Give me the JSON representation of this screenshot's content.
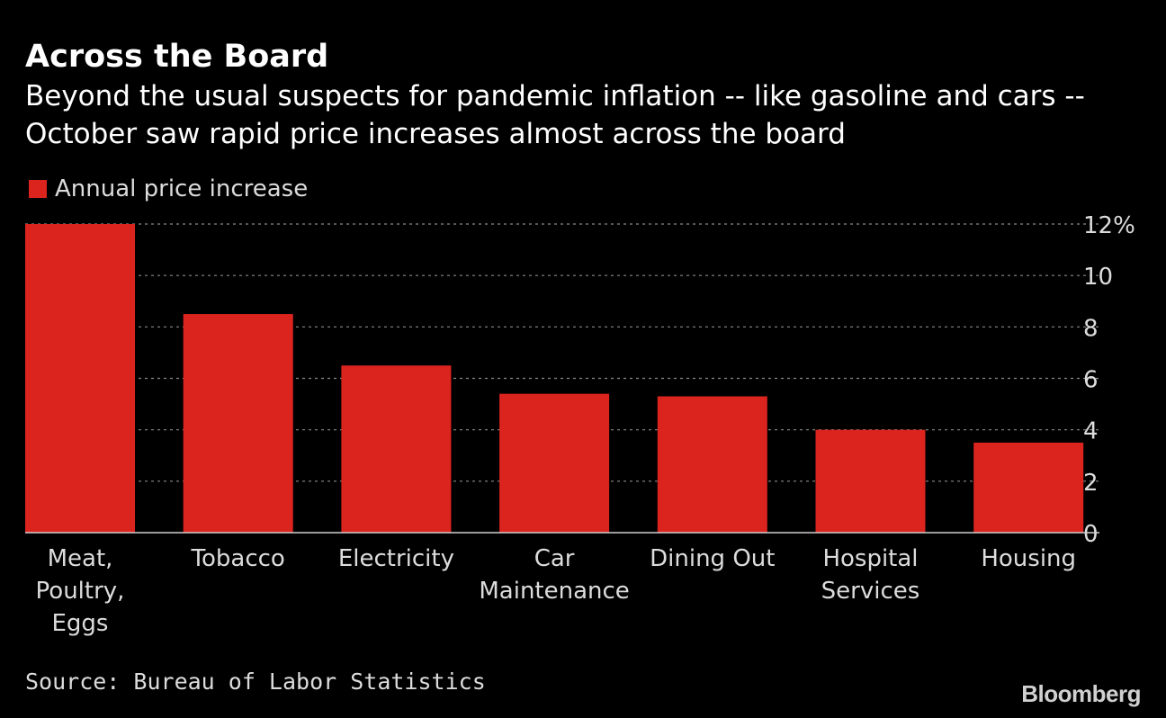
{
  "header": {
    "title": "Across the Board",
    "subtitle": "Beyond the usual suspects for pandemic inflation -- like gasoline and cars -- October saw rapid price increases almost across the board"
  },
  "footer": {
    "source": "Source: Bureau of Labor Statistics",
    "logo": "Bloomberg"
  },
  "colors": {
    "bar": "#dc241f",
    "background": "#000000",
    "grid": "#8a8a8a",
    "text": "#ffffff"
  },
  "chart_data": {
    "type": "bar",
    "categories": [
      [
        "Meat,",
        "Poultry,",
        "Eggs"
      ],
      [
        "Tobacco"
      ],
      [
        "Electricity"
      ],
      [
        "Car",
        "Maintenance"
      ],
      [
        "Dining Out"
      ],
      [
        "Hospital",
        "Services"
      ],
      [
        "Housing"
      ]
    ],
    "series": [
      {
        "name": "Annual price increase",
        "values": [
          12.0,
          8.5,
          6.5,
          5.4,
          5.3,
          4.0,
          3.5
        ]
      }
    ],
    "ylim": [
      0,
      12
    ],
    "yticks": [
      "0",
      "2",
      "4",
      "6",
      "8",
      "10",
      "12%"
    ],
    "ytick_values": [
      0,
      2,
      4,
      6,
      8,
      10,
      12
    ],
    "y_axis_position": "right",
    "grid": true,
    "legend_position": "top-left"
  }
}
